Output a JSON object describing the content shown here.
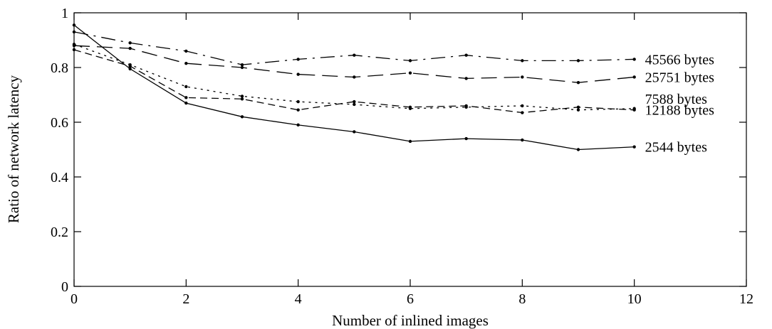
{
  "chart_data": {
    "type": "line",
    "xlabel": "Number of inlined images",
    "ylabel": "Ratio of network latency",
    "xlim": [
      0,
      12
    ],
    "ylim": [
      0,
      1
    ],
    "xticks": [
      0,
      2,
      4,
      6,
      8,
      10,
      12
    ],
    "yticks": [
      0,
      0.2,
      0.4,
      0.6,
      0.8,
      1
    ],
    "ytick_labels": [
      "0",
      "0.2",
      "0.4",
      "0.6",
      "0.8",
      "1"
    ],
    "grid": false,
    "legend": "inline labels at right end of each series",
    "series": [
      {
        "name": "45566 bytes",
        "line_style": "dash-dot",
        "x": [
          0,
          1,
          2,
          3,
          4,
          5,
          6,
          7,
          8,
          9,
          10
        ],
        "values": [
          0.93,
          0.89,
          0.86,
          0.81,
          0.83,
          0.845,
          0.825,
          0.845,
          0.825,
          0.825,
          0.83
        ]
      },
      {
        "name": "25751 bytes",
        "line_style": "long-dash",
        "x": [
          0,
          1,
          2,
          3,
          4,
          5,
          6,
          7,
          8,
          9,
          10
        ],
        "values": [
          0.88,
          0.87,
          0.815,
          0.8,
          0.775,
          0.765,
          0.78,
          0.76,
          0.765,
          0.745,
          0.765
        ]
      },
      {
        "name": "7588 bytes",
        "line_style": "dotted",
        "x": [
          0,
          1,
          2,
          3,
          4,
          5,
          6,
          7,
          8,
          9,
          10
        ],
        "values": [
          0.885,
          0.81,
          0.73,
          0.695,
          0.675,
          0.665,
          0.65,
          0.655,
          0.66,
          0.645,
          0.65
        ]
      },
      {
        "name": "12188 bytes",
        "line_style": "short-dash",
        "x": [
          0,
          1,
          2,
          3,
          4,
          5,
          6,
          7,
          8,
          9,
          10
        ],
        "values": [
          0.865,
          0.805,
          0.69,
          0.685,
          0.645,
          0.675,
          0.655,
          0.66,
          0.635,
          0.655,
          0.645
        ]
      },
      {
        "name": "2544 bytes",
        "line_style": "solid",
        "x": [
          0,
          1,
          2,
          3,
          4,
          5,
          6,
          7,
          8,
          9,
          10
        ],
        "values": [
          0.955,
          0.795,
          0.67,
          0.62,
          0.59,
          0.565,
          0.53,
          0.54,
          0.535,
          0.5,
          0.51
        ]
      }
    ]
  }
}
